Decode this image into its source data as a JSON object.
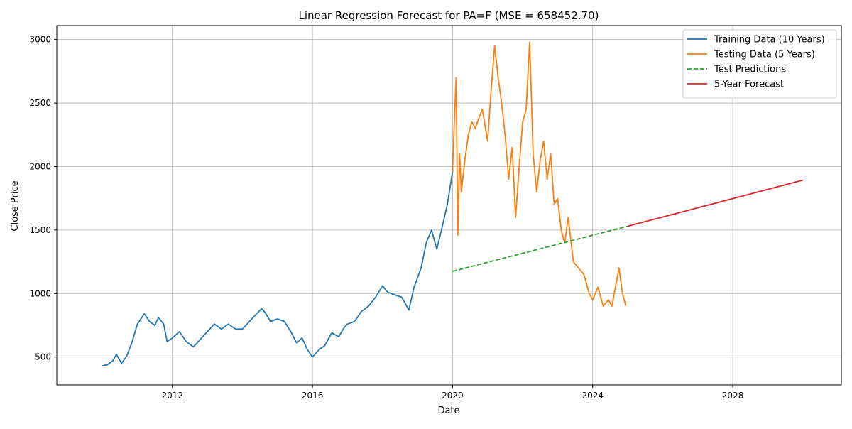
{
  "chart_data": {
    "type": "line",
    "title": "Linear Regression Forecast for PA=F (MSE = 658452.70)",
    "xlabel": "Date",
    "ylabel": "Close Price",
    "xlim": [
      2008.7,
      2031.1
    ],
    "ylim": [
      280,
      3110
    ],
    "x_ticks": [
      2012,
      2016,
      2020,
      2024,
      2028
    ],
    "y_ticks": [
      500,
      1000,
      1500,
      2000,
      2500,
      3000
    ],
    "grid": true,
    "legend_position": "top-right",
    "series": [
      {
        "name": "Training Data (10 Years)",
        "color": "#1f77b4",
        "style": "solid",
        "x": [
          2010.0,
          2010.15,
          2010.3,
          2010.4,
          2010.55,
          2010.7,
          2010.85,
          2011.0,
          2011.1,
          2011.2,
          2011.35,
          2011.5,
          2011.6,
          2011.75,
          2011.85,
          2012.0,
          2012.2,
          2012.4,
          2012.6,
          2012.8,
          2013.0,
          2013.2,
          2013.4,
          2013.6,
          2013.8,
          2014.0,
          2014.2,
          2014.4,
          2014.55,
          2014.65,
          2014.8,
          2015.0,
          2015.2,
          2015.4,
          2015.55,
          2015.7,
          2015.85,
          2016.0,
          2016.2,
          2016.35,
          2016.55,
          2016.75,
          2016.9,
          2017.0,
          2017.2,
          2017.4,
          2017.6,
          2017.8,
          2018.0,
          2018.15,
          2018.35,
          2018.55,
          2018.75,
          2018.9,
          2019.1,
          2019.25,
          2019.4,
          2019.55,
          2019.7,
          2019.85,
          2020.0
        ],
        "y": [
          430,
          440,
          470,
          520,
          450,
          510,
          620,
          760,
          800,
          840,
          780,
          750,
          810,
          760,
          620,
          650,
          700,
          620,
          580,
          640,
          700,
          760,
          720,
          760,
          720,
          720,
          780,
          840,
          880,
          850,
          780,
          800,
          780,
          690,
          610,
          650,
          560,
          500,
          560,
          590,
          690,
          660,
          730,
          760,
          780,
          860,
          900,
          970,
          1060,
          1010,
          990,
          970,
          870,
          1050,
          1200,
          1400,
          1500,
          1350,
          1520,
          1700,
          1960
        ]
      },
      {
        "name": "Testing Data (5 Years)",
        "color": "#ff7f0e",
        "style": "solid",
        "x": [
          2020.0,
          2020.05,
          2020.1,
          2020.15,
          2020.2,
          2020.25,
          2020.35,
          2020.45,
          2020.55,
          2020.65,
          2020.75,
          2020.85,
          2021.0,
          2021.1,
          2021.2,
          2021.3,
          2021.4,
          2021.5,
          2021.6,
          2021.7,
          2021.8,
          2021.9,
          2022.0,
          2022.1,
          2022.2,
          2022.3,
          2022.4,
          2022.5,
          2022.6,
          2022.7,
          2022.8,
          2022.9,
          2023.0,
          2023.1,
          2023.2,
          2023.3,
          2023.45,
          2023.6,
          2023.75,
          2023.9,
          2024.0,
          2024.15,
          2024.3,
          2024.45,
          2024.55,
          2024.65,
          2024.75,
          2024.85,
          2024.95
        ],
        "y": [
          1960,
          2350,
          2700,
          1460,
          2100,
          1800,
          2050,
          2250,
          2350,
          2300,
          2380,
          2450,
          2200,
          2600,
          2950,
          2700,
          2500,
          2250,
          1900,
          2150,
          1600,
          2000,
          2350,
          2450,
          2980,
          2100,
          1800,
          2050,
          2200,
          1900,
          2100,
          1700,
          1750,
          1500,
          1400,
          1600,
          1250,
          1200,
          1150,
          1000,
          950,
          1050,
          900,
          950,
          900,
          1050,
          1200,
          1000,
          900
        ]
      },
      {
        "name": "Test Predictions",
        "color": "#2ca02c",
        "style": "dashed",
        "x": [
          2020.0,
          2025.0
        ],
        "y": [
          1175,
          1530
        ]
      },
      {
        "name": "5-Year Forecast",
        "color": "#d62728",
        "style": "solid",
        "x": [
          2025.0,
          2030.0
        ],
        "y": [
          1530,
          1893
        ]
      }
    ]
  }
}
